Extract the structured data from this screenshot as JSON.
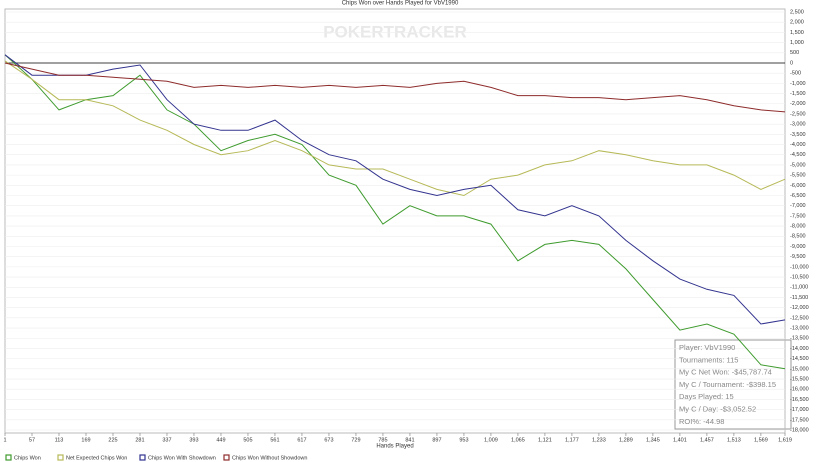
{
  "chart_data": {
    "type": "line",
    "title": "Chips Won over Hands Played for VbV1990",
    "watermark": "POKERTRACKER",
    "x_label": "Hands Played",
    "x": [
      1,
      57,
      113,
      169,
      225,
      281,
      337,
      393,
      449,
      505,
      561,
      617,
      673,
      729,
      785,
      841,
      897,
      953,
      1009,
      1065,
      1121,
      1177,
      1233,
      1289,
      1345,
      1401,
      1457,
      1513,
      1569,
      1619
    ],
    "xlim": [
      1,
      1619
    ],
    "xticks": [
      1,
      57,
      113,
      169,
      225,
      281,
      337,
      393,
      449,
      505,
      561,
      617,
      673,
      729,
      785,
      841,
      897,
      953,
      {
        "value": 1009,
        "label": "1,009"
      },
      {
        "value": 1065,
        "label": "1,065"
      },
      {
        "value": 1121,
        "label": "1,121"
      },
      {
        "value": 1177,
        "label": "1,177"
      },
      {
        "value": 1233,
        "label": "1,233"
      },
      {
        "value": 1289,
        "label": "1,289"
      },
      {
        "value": 1345,
        "label": "1,345"
      },
      {
        "value": 1401,
        "label": "1,401"
      },
      {
        "value": 1457,
        "label": "1,457"
      },
      {
        "value": 1513,
        "label": "1,513"
      },
      {
        "value": 1569,
        "label": "1,569"
      },
      {
        "value": 1619,
        "label": "1,619"
      }
    ],
    "ylim": [
      -18000,
      2500
    ],
    "yticks": [
      {
        "value": 2500,
        "label": "2,500"
      },
      {
        "value": 2000,
        "label": "2,000"
      },
      {
        "value": 1500,
        "label": "1,500"
      },
      {
        "value": 1000,
        "label": "1,000"
      },
      500,
      0,
      -500,
      {
        "value": -1000,
        "label": "-1,000"
      },
      {
        "value": -1500,
        "label": "-1,500"
      },
      {
        "value": -2000,
        "label": "-2,000"
      },
      {
        "value": -2500,
        "label": "-2,500"
      },
      {
        "value": -3000,
        "label": "-3,000"
      },
      {
        "value": -3500,
        "label": "-3,500"
      },
      {
        "value": -4000,
        "label": "-4,000"
      },
      {
        "value": -4500,
        "label": "-4,500"
      },
      {
        "value": -5000,
        "label": "-5,000"
      },
      {
        "value": -5500,
        "label": "-5,500"
      },
      {
        "value": -6000,
        "label": "-6,000"
      },
      {
        "value": -6500,
        "label": "-6,500"
      },
      {
        "value": -7000,
        "label": "-7,000"
      },
      {
        "value": -7500,
        "label": "-7,500"
      },
      {
        "value": -8000,
        "label": "-8,000"
      },
      {
        "value": -8500,
        "label": "-8,500"
      },
      {
        "value": -9000,
        "label": "-9,000"
      },
      {
        "value": -9500,
        "label": "-9,500"
      },
      {
        "value": -10000,
        "label": "-10,000"
      },
      {
        "value": -10500,
        "label": "-10,500"
      },
      {
        "value": -11000,
        "label": "-11,000"
      },
      {
        "value": -11500,
        "label": "-11,500"
      },
      {
        "value": -12000,
        "label": "-12,000"
      },
      {
        "value": -12500,
        "label": "-12,500"
      },
      {
        "value": -13000,
        "label": "-13,000"
      },
      {
        "value": -13500,
        "label": "-13,500"
      },
      {
        "value": -14000,
        "label": "-14,000"
      },
      {
        "value": -14500,
        "label": "-14,500"
      },
      {
        "value": -15000,
        "label": "-15,000"
      },
      {
        "value": -15500,
        "label": "-15,500"
      },
      {
        "value": -16000,
        "label": "-16,000"
      },
      {
        "value": -16500,
        "label": "-16,500"
      },
      {
        "value": -17000,
        "label": "-17,000"
      },
      {
        "value": -17500,
        "label": "-17,500"
      },
      {
        "value": -18000,
        "label": "-18,000"
      }
    ],
    "grid": true,
    "legend": "bottom-left",
    "series": [
      {
        "name": "Chips Won",
        "color": "#3f9b2e",
        "values": [
          400,
          -800,
          -2300,
          -1800,
          -1600,
          -600,
          -2300,
          -3000,
          -4300,
          -3800,
          -3500,
          -4000,
          -5500,
          -6000,
          -7900,
          -7000,
          -7500,
          -7500,
          -7900,
          -9700,
          -8900,
          -8700,
          -8900,
          -10100,
          -11600,
          -13100,
          -12800,
          -13300,
          -14800,
          -15000
        ]
      },
      {
        "name": "Net Expected Chips Won",
        "color": "#b6b957",
        "values": [
          100,
          -800,
          -1800,
          -1800,
          -2100,
          -2800,
          -3300,
          -4000,
          -4500,
          -4300,
          -3800,
          -4300,
          -5000,
          -5200,
          -5200,
          -5700,
          -6200,
          -6500,
          -5700,
          -5500,
          -5000,
          -4800,
          -4300,
          -4500,
          -4800,
          -5000,
          -5000,
          -5500,
          -6200,
          -5700
        ]
      },
      {
        "name": "Chips Won With Showdown",
        "color": "#33338f",
        "values": [
          400,
          -600,
          -600,
          -600,
          -300,
          -100,
          -1800,
          -3000,
          -3300,
          -3300,
          -2800,
          -3800,
          -4500,
          -4800,
          -5700,
          -6200,
          -6500,
          -6200,
          -6000,
          -7200,
          -7500,
          -7000,
          -7500,
          -8700,
          -9700,
          -10600,
          -11100,
          -11400,
          -12800,
          -12600
        ]
      },
      {
        "name": "Chips Won Without Showdown",
        "color": "#8e2b2b",
        "values": [
          0,
          -300,
          -600,
          -600,
          -700,
          -800,
          -900,
          -1200,
          -1100,
          -1200,
          -1100,
          -1200,
          -1100,
          -1200,
          -1100,
          -1200,
          -1000,
          -900,
          -1200,
          -1600,
          -1600,
          -1700,
          -1700,
          -1800,
          -1700,
          -1600,
          -1800,
          -2100,
          -2300,
          -2400
        ]
      }
    ],
    "info": [
      "Player: VbV1990",
      "Tournaments: 115",
      "My C Net Won: -$45,787.74",
      "My C / Tournament: -$398.15",
      "Days Played: 15",
      "My C / Day: -$3,052.52",
      "ROI%: -44.98"
    ]
  }
}
